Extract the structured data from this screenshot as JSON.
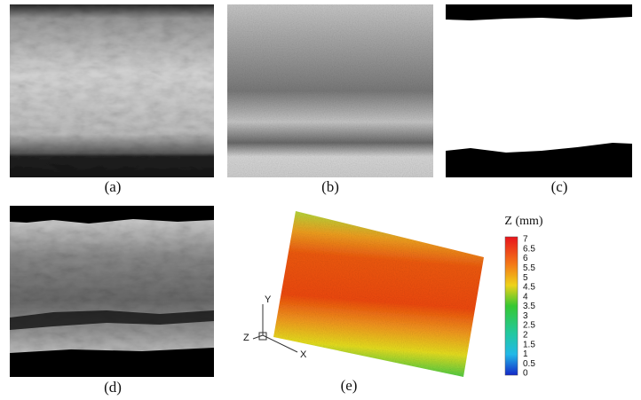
{
  "panels": [
    {
      "label": "(a)"
    },
    {
      "label": "(b)"
    },
    {
      "label": "(c)"
    },
    {
      "label": "(d)"
    },
    {
      "label": "(e)"
    }
  ],
  "colorbar": {
    "title": "Z (mm)",
    "ticks": [
      7,
      6.5,
      6,
      5.5,
      5,
      4.5,
      4,
      3.5,
      3,
      2.5,
      2,
      1.5,
      1,
      0.5,
      0
    ]
  },
  "axes": {
    "y": "Y",
    "z": "Z",
    "x": "X"
  }
}
